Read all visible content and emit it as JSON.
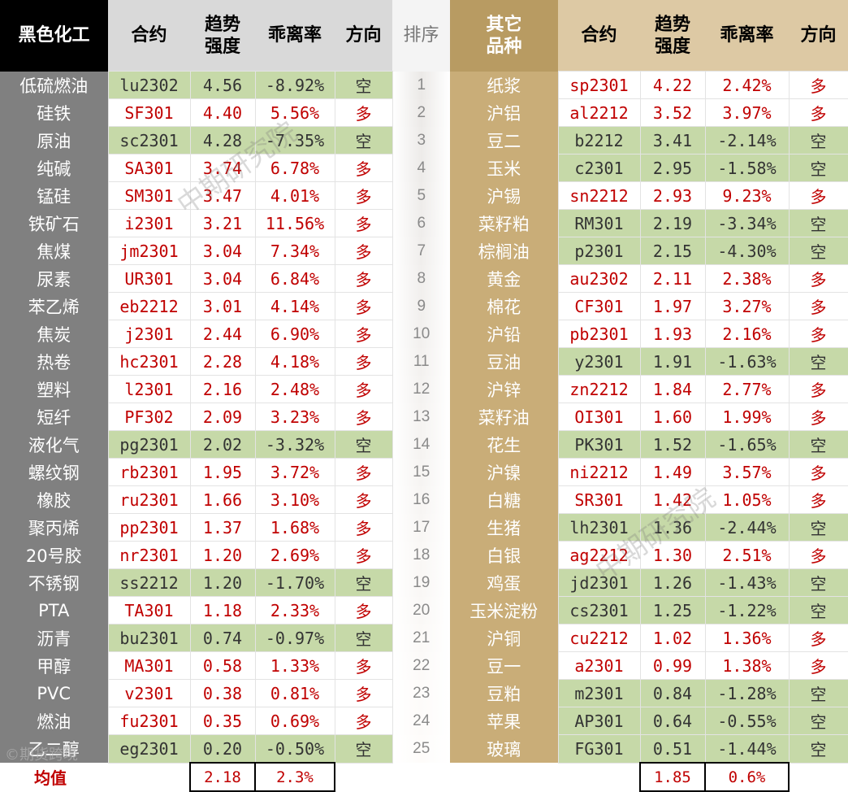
{
  "headers": {
    "left_title": "黑色化工",
    "right_title": "其它\n品种",
    "contract": "合约",
    "strength": "趋势\n强度",
    "deviation": "乖离率",
    "direction": "方向",
    "rank": "排序"
  },
  "rows": [
    {
      "rank": "1",
      "l": {
        "name": "低硫燃油",
        "contract": "lu2302",
        "strength": "4.56",
        "dev": "-8.92%",
        "dir": "空"
      },
      "r": {
        "name": "纸浆",
        "contract": "sp2301",
        "strength": "4.22",
        "dev": "2.42%",
        "dir": "多"
      }
    },
    {
      "rank": "2",
      "l": {
        "name": "硅铁",
        "contract": "SF301",
        "strength": "4.40",
        "dev": "5.56%",
        "dir": "多"
      },
      "r": {
        "name": "沪铝",
        "contract": "al2212",
        "strength": "3.52",
        "dev": "3.97%",
        "dir": "多"
      }
    },
    {
      "rank": "3",
      "l": {
        "name": "原油",
        "contract": "sc2301",
        "strength": "4.28",
        "dev": "-7.35%",
        "dir": "空"
      },
      "r": {
        "name": "豆二",
        "contract": "b2212",
        "strength": "3.41",
        "dev": "-2.14%",
        "dir": "空"
      }
    },
    {
      "rank": "4",
      "l": {
        "name": "纯碱",
        "contract": "SA301",
        "strength": "3.74",
        "dev": "6.78%",
        "dir": "多"
      },
      "r": {
        "name": "玉米",
        "contract": "c2301",
        "strength": "2.95",
        "dev": "-1.58%",
        "dir": "空"
      }
    },
    {
      "rank": "5",
      "l": {
        "name": "锰硅",
        "contract": "SM301",
        "strength": "3.47",
        "dev": "4.01%",
        "dir": "多"
      },
      "r": {
        "name": "沪锡",
        "contract": "sn2212",
        "strength": "2.93",
        "dev": "9.23%",
        "dir": "多"
      }
    },
    {
      "rank": "6",
      "l": {
        "name": "铁矿石",
        "contract": "i2301",
        "strength": "3.21",
        "dev": "11.56%",
        "dir": "多"
      },
      "r": {
        "name": "菜籽粕",
        "contract": "RM301",
        "strength": "2.19",
        "dev": "-3.34%",
        "dir": "空"
      }
    },
    {
      "rank": "7",
      "l": {
        "name": "焦煤",
        "contract": "jm2301",
        "strength": "3.04",
        "dev": "7.34%",
        "dir": "多"
      },
      "r": {
        "name": "棕榈油",
        "contract": "p2301",
        "strength": "2.15",
        "dev": "-4.30%",
        "dir": "空"
      }
    },
    {
      "rank": "8",
      "l": {
        "name": "尿素",
        "contract": "UR301",
        "strength": "3.04",
        "dev": "6.84%",
        "dir": "多"
      },
      "r": {
        "name": "黄金",
        "contract": "au2302",
        "strength": "2.11",
        "dev": "2.38%",
        "dir": "多"
      }
    },
    {
      "rank": "9",
      "l": {
        "name": "苯乙烯",
        "contract": "eb2212",
        "strength": "3.01",
        "dev": "4.14%",
        "dir": "多"
      },
      "r": {
        "name": "棉花",
        "contract": "CF301",
        "strength": "1.97",
        "dev": "3.27%",
        "dir": "多"
      }
    },
    {
      "rank": "10",
      "l": {
        "name": "焦炭",
        "contract": "j2301",
        "strength": "2.44",
        "dev": "6.90%",
        "dir": "多"
      },
      "r": {
        "name": "沪铅",
        "contract": "pb2301",
        "strength": "1.93",
        "dev": "2.16%",
        "dir": "多"
      }
    },
    {
      "rank": "11",
      "l": {
        "name": "热卷",
        "contract": "hc2301",
        "strength": "2.28",
        "dev": "4.18%",
        "dir": "多"
      },
      "r": {
        "name": "豆油",
        "contract": "y2301",
        "strength": "1.91",
        "dev": "-1.63%",
        "dir": "空"
      }
    },
    {
      "rank": "12",
      "l": {
        "name": "塑料",
        "contract": "l2301",
        "strength": "2.16",
        "dev": "2.48%",
        "dir": "多"
      },
      "r": {
        "name": "沪锌",
        "contract": "zn2212",
        "strength": "1.84",
        "dev": "2.77%",
        "dir": "多"
      }
    },
    {
      "rank": "13",
      "l": {
        "name": "短纤",
        "contract": "PF302",
        "strength": "2.09",
        "dev": "3.23%",
        "dir": "多"
      },
      "r": {
        "name": "菜籽油",
        "contract": "OI301",
        "strength": "1.60",
        "dev": "1.99%",
        "dir": "多"
      }
    },
    {
      "rank": "14",
      "l": {
        "name": "液化气",
        "contract": "pg2301",
        "strength": "2.02",
        "dev": "-3.32%",
        "dir": "空"
      },
      "r": {
        "name": "花生",
        "contract": "PK301",
        "strength": "1.52",
        "dev": "-1.65%",
        "dir": "空"
      }
    },
    {
      "rank": "15",
      "l": {
        "name": "螺纹钢",
        "contract": "rb2301",
        "strength": "1.95",
        "dev": "3.72%",
        "dir": "多"
      },
      "r": {
        "name": "沪镍",
        "contract": "ni2212",
        "strength": "1.49",
        "dev": "3.57%",
        "dir": "多"
      }
    },
    {
      "rank": "16",
      "l": {
        "name": "橡胶",
        "contract": "ru2301",
        "strength": "1.66",
        "dev": "3.10%",
        "dir": "多"
      },
      "r": {
        "name": "白糖",
        "contract": "SR301",
        "strength": "1.42",
        "dev": "1.05%",
        "dir": "多"
      }
    },
    {
      "rank": "17",
      "l": {
        "name": "聚丙烯",
        "contract": "pp2301",
        "strength": "1.37",
        "dev": "1.68%",
        "dir": "多"
      },
      "r": {
        "name": "生猪",
        "contract": "lh2301",
        "strength": "1.36",
        "dev": "-2.44%",
        "dir": "空"
      }
    },
    {
      "rank": "18",
      "l": {
        "name": "20号胶",
        "contract": "nr2301",
        "strength": "1.20",
        "dev": "2.69%",
        "dir": "多"
      },
      "r": {
        "name": "白银",
        "contract": "ag2212",
        "strength": "1.30",
        "dev": "2.51%",
        "dir": "多"
      }
    },
    {
      "rank": "19",
      "l": {
        "name": "不锈钢",
        "contract": "ss2212",
        "strength": "1.20",
        "dev": "-1.70%",
        "dir": "空"
      },
      "r": {
        "name": "鸡蛋",
        "contract": "jd2301",
        "strength": "1.26",
        "dev": "-1.43%",
        "dir": "空"
      }
    },
    {
      "rank": "20",
      "l": {
        "name": "PTA",
        "contract": "TA301",
        "strength": "1.18",
        "dev": "2.33%",
        "dir": "多"
      },
      "r": {
        "name": "玉米淀粉",
        "contract": "cs2301",
        "strength": "1.25",
        "dev": "-1.22%",
        "dir": "空"
      }
    },
    {
      "rank": "21",
      "l": {
        "name": "沥青",
        "contract": "bu2301",
        "strength": "0.74",
        "dev": "-0.97%",
        "dir": "空"
      },
      "r": {
        "name": "沪铜",
        "contract": "cu2212",
        "strength": "1.02",
        "dev": "1.36%",
        "dir": "多"
      }
    },
    {
      "rank": "22",
      "l": {
        "name": "甲醇",
        "contract": "MA301",
        "strength": "0.58",
        "dev": "1.33%",
        "dir": "多"
      },
      "r": {
        "name": "豆一",
        "contract": "a2301",
        "strength": "0.99",
        "dev": "1.38%",
        "dir": "多"
      }
    },
    {
      "rank": "23",
      "l": {
        "name": "PVC",
        "contract": "v2301",
        "strength": "0.38",
        "dev": "0.81%",
        "dir": "多"
      },
      "r": {
        "name": "豆粕",
        "contract": "m2301",
        "strength": "0.84",
        "dev": "-1.28%",
        "dir": "空"
      }
    },
    {
      "rank": "24",
      "l": {
        "name": "燃油",
        "contract": "fu2301",
        "strength": "0.35",
        "dev": "0.69%",
        "dir": "多"
      },
      "r": {
        "name": "苹果",
        "contract": "AP301",
        "strength": "0.64",
        "dev": "-0.55%",
        "dir": "空"
      }
    },
    {
      "rank": "25",
      "l": {
        "name": "乙二醇",
        "contract": "eg2301",
        "strength": "0.20",
        "dev": "-0.50%",
        "dir": "空"
      },
      "r": {
        "name": "玻璃",
        "contract": "FG301",
        "strength": "0.51",
        "dev": "-1.44%",
        "dir": "空"
      }
    }
  ],
  "average": {
    "label": "均值",
    "left_strength": "2.18",
    "left_dev": "2.3%",
    "right_strength": "1.85",
    "right_dev": "0.6%"
  },
  "watermarks": [
    "中期研究院",
    "中期研究院"
  ],
  "logo_text": "©期货跨境",
  "colors": {
    "short_bg": "#c6d9a8",
    "long_text": "#c00000",
    "left_name_bg": "#808080",
    "right_name_bg": "#c9ad78",
    "left_header_bg": "#000000",
    "right_header_bg": "#b89b62"
  }
}
